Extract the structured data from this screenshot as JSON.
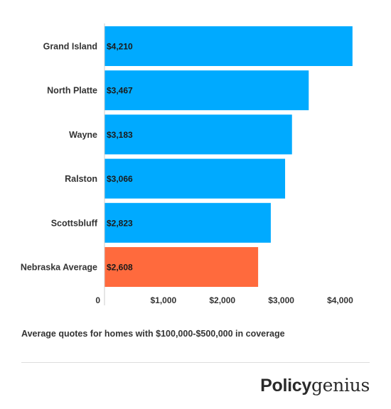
{
  "chart_data": {
    "type": "bar",
    "orientation": "horizontal",
    "categories": [
      "Grand Island",
      "North Platte",
      "Wayne",
      "Ralston",
      "Scottsbluff",
      "Nebraska Average"
    ],
    "values": [
      4210,
      3467,
      3183,
      3066,
      2823,
      2608
    ],
    "value_labels": [
      "$4,210",
      "$3,467",
      "$3,183",
      "$3,066",
      "$2,823",
      "$2,608"
    ],
    "x_ticks": [
      0,
      1000,
      2000,
      3000,
      4000
    ],
    "x_tick_labels": [
      "0",
      "$1,000",
      "$2,000",
      "$3,000",
      "$4,000"
    ],
    "xlim": [
      0,
      4200
    ],
    "grid": false,
    "colors": {
      "default": "#00aaff",
      "highlight": "#ff6a3d",
      "highlight_category": "Nebraska Average"
    }
  },
  "caption": "Average quotes for homes with $100,000-$500,000 in coverage",
  "logo": {
    "part1": "Policy",
    "part2": "genius"
  }
}
